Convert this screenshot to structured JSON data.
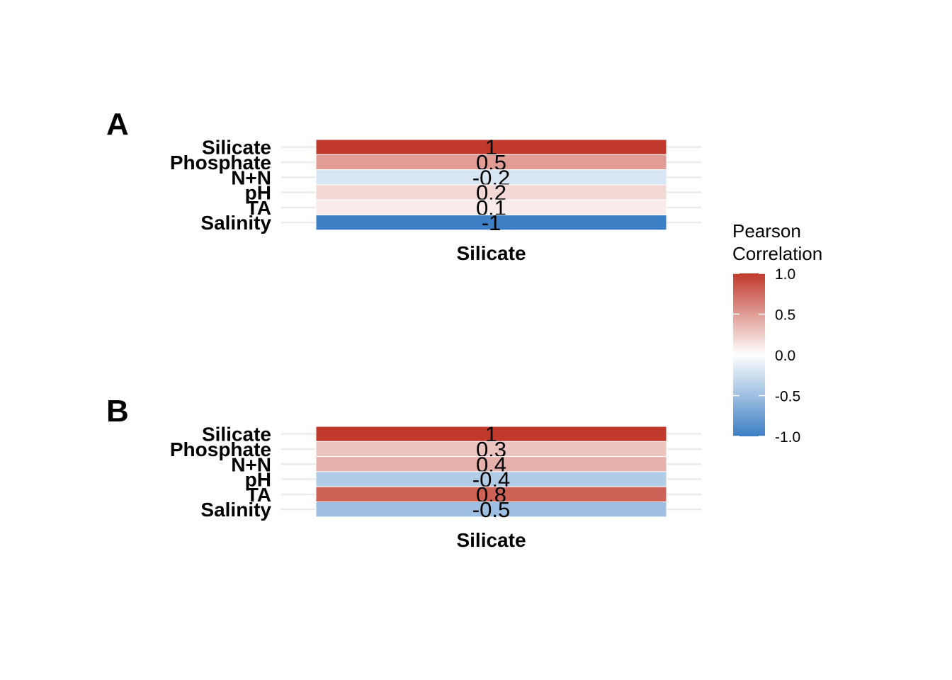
{
  "chart_data": [
    {
      "type": "heatmap",
      "panel": "A",
      "columns": [
        "Silicate"
      ],
      "rows": [
        "Silicate",
        "Phosphate",
        "N+N",
        "pH",
        "TA",
        "Salinity"
      ],
      "values": [
        1,
        0.5,
        -0.2,
        0.2,
        0.1,
        -1
      ],
      "value_labels": [
        "1",
        "0.5",
        "-0.2",
        "0.2",
        "0.1",
        "-1"
      ],
      "xlabel": "",
      "ylabel": ""
    },
    {
      "type": "heatmap",
      "panel": "B",
      "columns": [
        "Silicate"
      ],
      "rows": [
        "Silicate",
        "Phosphate",
        "N+N",
        "pH",
        "TA",
        "Salinity"
      ],
      "values": [
        1,
        0.3,
        0.4,
        -0.4,
        0.8,
        -0.5
      ],
      "value_labels": [
        "1",
        "0.3",
        "0.4",
        "-0.4",
        "0.8",
        "-0.5"
      ],
      "xlabel": "",
      "ylabel": ""
    }
  ],
  "legend": {
    "title_line1": "Pearson",
    "title_line2": "Correlation",
    "ticks": [
      {
        "value": 1.0,
        "label": "1.0"
      },
      {
        "value": 0.5,
        "label": "0.5"
      },
      {
        "value": 0.0,
        "label": "0.0"
      },
      {
        "value": -0.5,
        "label": "-0.5"
      },
      {
        "value": -1.0,
        "label": "-1.0"
      }
    ],
    "limits": [
      -1,
      1
    ]
  },
  "colors": {
    "high": "#C0392B",
    "mid": "#FFFFFF",
    "low": "#3D7FC4",
    "grid": "#EBEBEB"
  }
}
